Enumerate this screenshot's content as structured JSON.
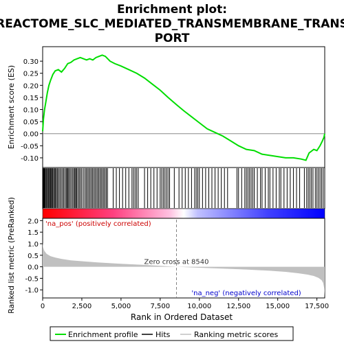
{
  "title_line1": "Enrichment plot:",
  "title_line2": "REACTOME_SLC_MEDIATED_TRANSMEMBRANE_TRANS",
  "title_line3": "PORT",
  "colors": {
    "es_line": "#00dd00",
    "hits": "#000000",
    "metric_fill": "#c0c0c0",
    "pos_text": "#cc0000",
    "neg_text": "#0000cc",
    "zero_line": "#808080"
  },
  "chart_data": [
    {
      "type": "line",
      "name": "enrichment-score-panel",
      "ylabel": "Enrichment score (ES)",
      "xlim": [
        0,
        18000
      ],
      "ylim": [
        -0.14,
        0.36
      ],
      "yticks": [
        "0.30",
        "0.25",
        "0.20",
        "0.15",
        "0.10",
        "0.05",
        "0.00",
        "-0.05",
        "-0.10"
      ],
      "ytick_values": [
        0.3,
        0.25,
        0.2,
        0.15,
        0.1,
        0.05,
        0.0,
        -0.05,
        -0.1
      ],
      "series": [
        {
          "x": [
            0,
            50,
            120,
            200,
            300,
            400,
            500,
            650,
            800,
            1000,
            1200,
            1400,
            1600,
            1800,
            2000,
            2200,
            2400,
            2600,
            2800,
            3000,
            3200,
            3400,
            3600,
            3800,
            4000,
            4300,
            4600,
            5000,
            5500,
            6000,
            6500,
            7000,
            7500,
            8000,
            8540,
            9000,
            9500,
            10000,
            10500,
            11000,
            11500,
            12000,
            12500,
            13000,
            13500,
            14000,
            14500,
            15000,
            15500,
            16000,
            16500,
            16800,
            17000,
            17300,
            17500,
            17700,
            17850,
            17950,
            18000
          ],
          "y": [
            0.01,
            0.06,
            0.1,
            0.13,
            0.17,
            0.2,
            0.22,
            0.245,
            0.26,
            0.265,
            0.255,
            0.27,
            0.29,
            0.295,
            0.305,
            0.31,
            0.315,
            0.31,
            0.305,
            0.31,
            0.305,
            0.315,
            0.32,
            0.325,
            0.32,
            0.3,
            0.29,
            0.28,
            0.265,
            0.25,
            0.23,
            0.205,
            0.18,
            0.15,
            0.12,
            0.095,
            0.07,
            0.045,
            0.02,
            0.005,
            -0.01,
            -0.03,
            -0.05,
            -0.065,
            -0.07,
            -0.085,
            -0.09,
            -0.095,
            -0.1,
            -0.1,
            -0.105,
            -0.11,
            -0.08,
            -0.065,
            -0.07,
            -0.05,
            -0.03,
            -0.015,
            0.0
          ]
        }
      ]
    },
    {
      "type": "bar",
      "name": "hits-panel",
      "hit_positions": [
        15,
        40,
        70,
        110,
        150,
        210,
        260,
        310,
        370,
        430,
        480,
        530,
        580,
        640,
        700,
        760,
        820,
        880,
        950,
        1020,
        1100,
        1180,
        1260,
        1340,
        1420,
        1500,
        1560,
        1620,
        1680,
        1760,
        1840,
        1920,
        2000,
        2060,
        2120,
        2180,
        2260,
        2340,
        2420,
        2500,
        2600,
        2700,
        2780,
        2860,
        2940,
        3020,
        3100,
        3180,
        3260,
        3340,
        3420,
        3500,
        3580,
        3660,
        3740,
        3820,
        3900,
        3980,
        4060,
        4140,
        4500,
        4700,
        4900,
        5100,
        5300,
        5500,
        5700,
        5800,
        5900,
        6000,
        6100,
        6500,
        6700,
        6900,
        7100,
        7300,
        7500,
        7600,
        7700,
        7800,
        7900,
        8000,
        8100,
        8400,
        8700,
        8900,
        9100,
        9300,
        9500,
        9700,
        9800,
        9900,
        10000,
        10200,
        10400,
        10600,
        10800,
        11000,
        11200,
        11400,
        11600,
        11800,
        12400,
        12500,
        12700,
        12900,
        13000,
        13100,
        13200,
        13300,
        13400,
        13500,
        13700,
        13900,
        14000,
        14200,
        14400,
        14500,
        14700,
        14900,
        15100,
        15200,
        15400,
        15600,
        15800,
        16000,
        16200,
        16400,
        16700,
        16850,
        16950,
        17050,
        17150,
        17250,
        17400,
        17500,
        17600,
        17700,
        17800,
        17900
      ]
    },
    {
      "type": "area",
      "name": "ranked-metric-panel",
      "xlabel": "Rank in Ordered Dataset",
      "ylabel": "Ranked list metric (PreRanked)",
      "xlim": [
        0,
        18000
      ],
      "ylim": [
        -1.35,
        2.1
      ],
      "xticks": [
        "0",
        "2,500",
        "5,000",
        "7,500",
        "10,000",
        "12,500",
        "15,000",
        "17,500"
      ],
      "xtick_values": [
        0,
        2500,
        5000,
        7500,
        10000,
        12500,
        15000,
        17500
      ],
      "yticks": [
        "2.0",
        "1.5",
        "1.0",
        "0.5",
        "0.0",
        "-0.5",
        "-1.0"
      ],
      "ytick_values": [
        2.0,
        1.5,
        1.0,
        0.5,
        0.0,
        -0.5,
        -1.0
      ],
      "x": [
        0,
        30,
        100,
        250,
        500,
        800,
        1200,
        1800,
        2500,
        3500,
        5000,
        6500,
        8540,
        10000,
        11500,
        13000,
        14500,
        15500,
        16300,
        16900,
        17300,
        17600,
        17800,
        17900,
        17970,
        18000
      ],
      "y": [
        1.05,
        0.85,
        0.7,
        0.56,
        0.46,
        0.4,
        0.34,
        0.28,
        0.24,
        0.19,
        0.13,
        0.08,
        0.0,
        -0.04,
        -0.08,
        -0.12,
        -0.17,
        -0.22,
        -0.28,
        -0.34,
        -0.4,
        -0.48,
        -0.58,
        -0.7,
        -0.95,
        -1.3
      ],
      "zero_cross_label": "Zero cross at 8540",
      "zero_cross": 8540,
      "pos_label": "'na_pos' (positively correlated)",
      "neg_label": "'na_neg' (negatively correlated)"
    }
  ],
  "legend": {
    "enrichment_profile": "Enrichment profile",
    "hits": "Hits",
    "ranking_metric": "Ranking metric scores"
  }
}
